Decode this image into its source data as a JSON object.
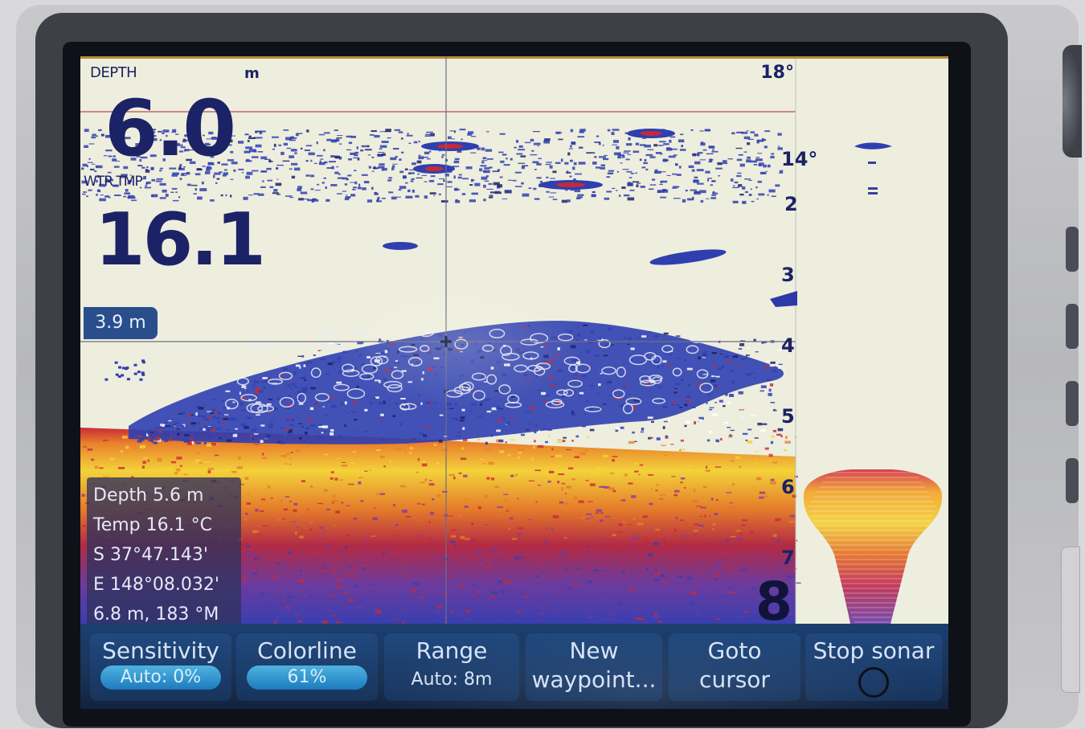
{
  "display": {
    "depth_label": "DEPTH",
    "depth_unit": "m",
    "depth_value": "6.0",
    "water_temp_label": "WTR TMP",
    "water_temp_value": "16.1",
    "top_temp": "18°",
    "scale_marks": [
      "14°",
      "2",
      "3",
      "4",
      "5",
      "6",
      "7"
    ],
    "range_max": "8",
    "cursor_depth": "3.9 m"
  },
  "info_panel": {
    "depth": "Depth   5.6 m",
    "temp": "Temp  16.1 °C",
    "lat": "S    37°47.143'",
    "lon": "E 148°08.032'",
    "bearing": "6.8 m, 183 °M"
  },
  "softkeys": [
    {
      "label": "Sensitivity",
      "value": "Auto: 0%"
    },
    {
      "label": "Colorline",
      "value": "61%"
    },
    {
      "label": "Range",
      "value": "Auto: 8m"
    },
    {
      "label": "New",
      "value": "waypoint..."
    },
    {
      "label": "Goto",
      "value": "cursor"
    },
    {
      "label": "Stop sonar",
      "value": ""
    }
  ],
  "colors": {
    "screen_bg": "#eeeede",
    "echo_blue": "#2f3fb0",
    "echo_red": "#c42a36",
    "echo_yellow": "#f3d23a",
    "text_navy": "#1c2266",
    "softkey_bg": "#1b3f70"
  },
  "icons": [
    "cursor-crosshair-icon",
    "sonar-stop-circle-icon",
    "fish-arch-icon"
  ]
}
